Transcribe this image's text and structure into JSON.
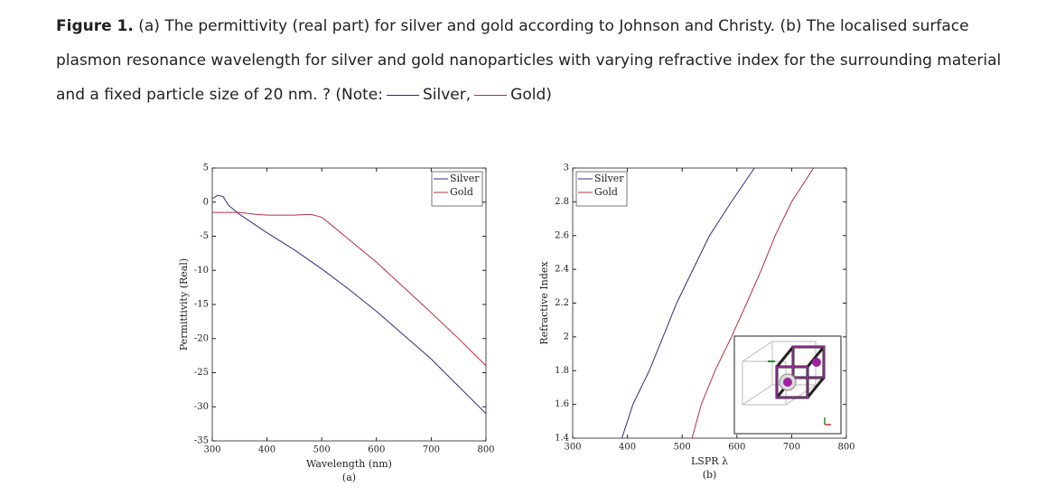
{
  "caption": {
    "label": "Figure 1.",
    "text": "(a) The permittivity (real part) for silver and gold according to Johnson and Christy. (b) The localised surface plasmon resonance wavelength for silver and gold nanoparticles with varying refractive index for the surrounding material and a fixed particle size of 20 nm.",
    "note": "? (Note:",
    "items": [
      "Silver,",
      "Gold)"
    ]
  },
  "chart_data": [
    {
      "type": "line",
      "x_label": "Wavelength (nm)",
      "x_sublabel": "(a)",
      "y_label": "Permittivity (Real)",
      "xlim": [
        300,
        800
      ],
      "xticks": [
        300,
        400,
        500,
        600,
        700,
        800
      ],
      "ylim": [
        -35,
        5
      ],
      "yticks": [
        5,
        0,
        -5,
        -10,
        -15,
        -20,
        -25,
        -30,
        -35
      ],
      "legend": "upper-right",
      "grid": false,
      "series": [
        {
          "name": "Silver",
          "color": "#2e2e7a",
          "x": [
            300,
            310,
            320,
            330,
            350,
            400,
            450,
            500,
            550,
            600,
            650,
            700,
            750,
            800
          ],
          "values": [
            0.5,
            1.0,
            0.8,
            -0.5,
            -1.8,
            -4.5,
            -7,
            -9.8,
            -12.8,
            -16,
            -19.5,
            -23,
            -27,
            -31
          ]
        },
        {
          "name": "Gold",
          "color": "#b03040",
          "x": [
            300,
            350,
            380,
            400,
            450,
            480,
            500,
            520,
            550,
            600,
            650,
            700,
            750,
            800
          ],
          "values": [
            -1.5,
            -1.5,
            -1.8,
            -1.9,
            -1.9,
            -1.8,
            -2.2,
            -3.5,
            -5.5,
            -8.8,
            -12.5,
            -16.2,
            -20,
            -24
          ]
        }
      ]
    },
    {
      "type": "line",
      "x_label": "LSPR λ",
      "x_sublabel": "(b)",
      "y_label": "Refractive Index",
      "xlim": [
        300,
        800
      ],
      "xticks": [
        300,
        400,
        500,
        600,
        700,
        800
      ],
      "ylim": [
        1.4,
        3
      ],
      "yticks": [
        1.4,
        1.6,
        1.8,
        2,
        2.2,
        2.4,
        2.6,
        2.8,
        3
      ],
      "legend": "upper-left",
      "grid": false,
      "series": [
        {
          "name": "Silver",
          "color": "#2e2e7a",
          "x": [
            390,
            410,
            440,
            465,
            490,
            520,
            550,
            590,
            632
          ],
          "values": [
            1.4,
            1.6,
            1.8,
            2.0,
            2.2,
            2.4,
            2.6,
            2.8,
            3.0
          ]
        },
        {
          "name": "Gold",
          "color": "#b03040",
          "x": [
            518,
            535,
            560,
            590,
            618,
            645,
            670,
            700,
            740
          ],
          "values": [
            1.4,
            1.6,
            1.8,
            2.0,
            2.2,
            2.4,
            2.6,
            2.8,
            3.0
          ]
        }
      ]
    }
  ]
}
